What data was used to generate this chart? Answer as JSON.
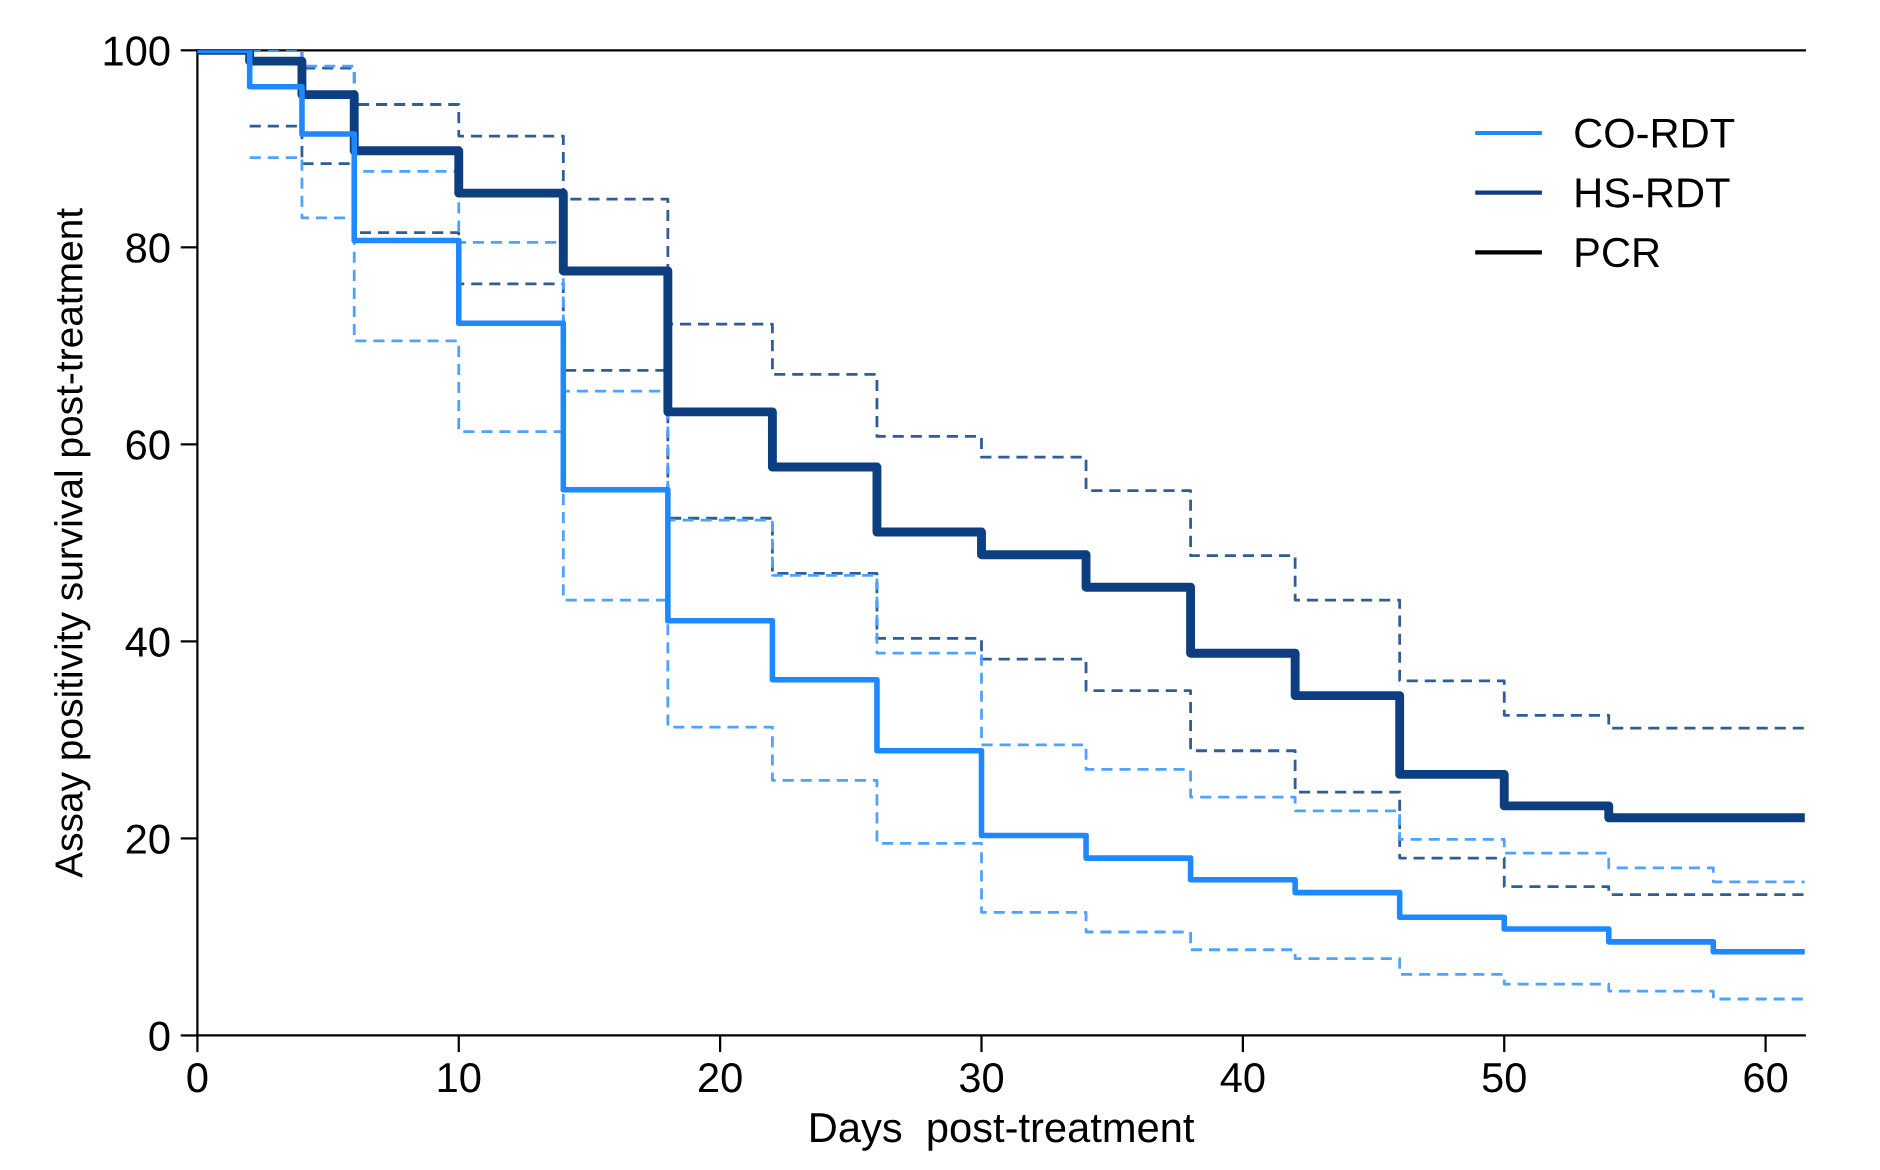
{
  "chart_data": {
    "type": "step",
    "xlabel": "Days  post-treatment",
    "ylabel": "Assay positivity survival post-treatment",
    "x": [
      0,
      2,
      4,
      6,
      10,
      14,
      18,
      22,
      26,
      30,
      34,
      38,
      42,
      46,
      50,
      54,
      58,
      61.5
    ],
    "xlim": [
      0,
      61.5
    ],
    "xticks": [
      0,
      10,
      20,
      30,
      40,
      50,
      60
    ],
    "ylim": [
      0,
      100
    ],
    "yticks": [
      0,
      20,
      40,
      60,
      80,
      100
    ],
    "grid": false,
    "legend": "top right",
    "series": [
      {
        "name": "CO-RDT",
        "color": "#1e88ff",
        "line_style": "solid",
        "values": [
          100,
          96.3,
          91.5,
          80.7,
          72.3,
          55.4,
          42.1,
          36.1,
          28.9,
          20.3,
          18,
          15.8,
          14.5,
          12,
          10.8,
          9.5,
          8.5,
          8.5
        ]
      },
      {
        "name": "HS-RDT",
        "color": "#0d3f80",
        "line_style": "solid",
        "values": [
          100,
          98.9,
          95.5,
          89.8,
          85.5,
          77.6,
          63.3,
          57.7,
          51.1,
          48.8,
          45.5,
          38.8,
          34.5,
          26.5,
          23.3,
          22.1,
          22.1,
          22.1
        ]
      },
      {
        "name": "PCR",
        "color": "#000000",
        "line_style": "solid",
        "values": [
          null,
          null,
          null,
          null,
          null,
          null,
          null,
          null,
          null,
          null,
          null,
          null,
          null,
          null,
          null,
          null,
          null,
          null
        ]
      },
      {
        "color": "#4da3ff",
        "line_style": "dashed",
        "values": [
          null,
          100,
          98.4,
          87.7,
          80.5,
          65.4,
          52.3,
          46.7,
          38.8,
          29.5,
          27,
          24.2,
          22.8,
          19.9,
          18.5,
          17,
          15.6,
          15.6
        ]
      },
      {
        "color": "#4da3ff",
        "line_style": "dashed",
        "values": [
          null,
          89.1,
          83,
          70.5,
          61.3,
          44.2,
          31.3,
          25.9,
          19.5,
          12.5,
          10.5,
          8.7,
          7.8,
          6.2,
          5.2,
          4.5,
          3.7,
          3.7
        ]
      },
      {
        "color": "#2f5d94",
        "line_style": "dashed",
        "values": [
          null,
          100,
          98.2,
          94.5,
          91.3,
          84.9,
          72.2,
          67.1,
          60.8,
          58.7,
          55.3,
          48.7,
          44.2,
          36,
          32.5,
          31.2,
          31.2,
          31.2
        ]
      },
      {
        "color": "#2f5d94",
        "line_style": "dashed",
        "values": [
          null,
          92.3,
          88.5,
          81.5,
          76.3,
          67.5,
          52.5,
          46.9,
          40.3,
          38.2,
          35,
          28.9,
          24.7,
          18,
          15.1,
          14.3,
          14.3,
          14.3
        ]
      }
    ]
  }
}
